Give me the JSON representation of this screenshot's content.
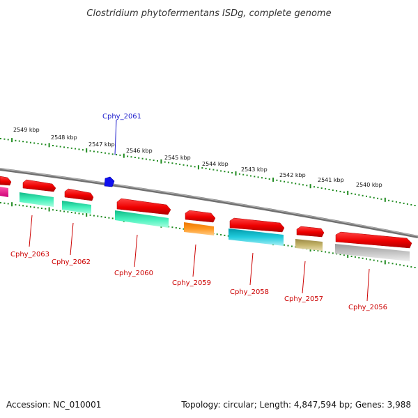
{
  "title": "Clostridium phytofermentans ISDg, complete genome",
  "footer": {
    "accession": "Accession: NC_010001",
    "summary": "Topology: circular; Length: 4,847,594 bp; Genes: 3,988"
  },
  "colors": {
    "backbone": "#8a8a8a",
    "ticks": "#1e8a1e",
    "forward_gene": "#ee1111",
    "label_red": "#cc0000",
    "label_blue": "#1a1acc",
    "blue_feature": "#1010ee"
  },
  "scale_labels": [
    "2549 kbp",
    "2548 kbp",
    "2547 kbp",
    "2546 kbp",
    "2545 kbp",
    "2544 kbp",
    "2543 kbp",
    "2542 kbp",
    "2541 kbp",
    "2540 kbp"
  ],
  "gene_labels": [
    {
      "name": "Cphy_2063",
      "color": "#cc0000"
    },
    {
      "name": "Cphy_2062",
      "color": "#cc0000"
    },
    {
      "name": "Cphy_2060",
      "color": "#cc0000"
    },
    {
      "name": "Cphy_2059",
      "color": "#cc0000"
    },
    {
      "name": "Cphy_2058",
      "color": "#cc0000"
    },
    {
      "name": "Cphy_2057",
      "color": "#cc0000"
    },
    {
      "name": "Cphy_2056",
      "color": "#cc0000"
    },
    {
      "name": "Cphy_2061",
      "color": "#1a1acc"
    }
  ],
  "cog_colors": [
    "#ee1188",
    "#22ddaa",
    "#22ddaa",
    "#22ddaa",
    "#ff8c00",
    "#11bbcc",
    "#bbaa55",
    "#b8b8b8"
  ]
}
